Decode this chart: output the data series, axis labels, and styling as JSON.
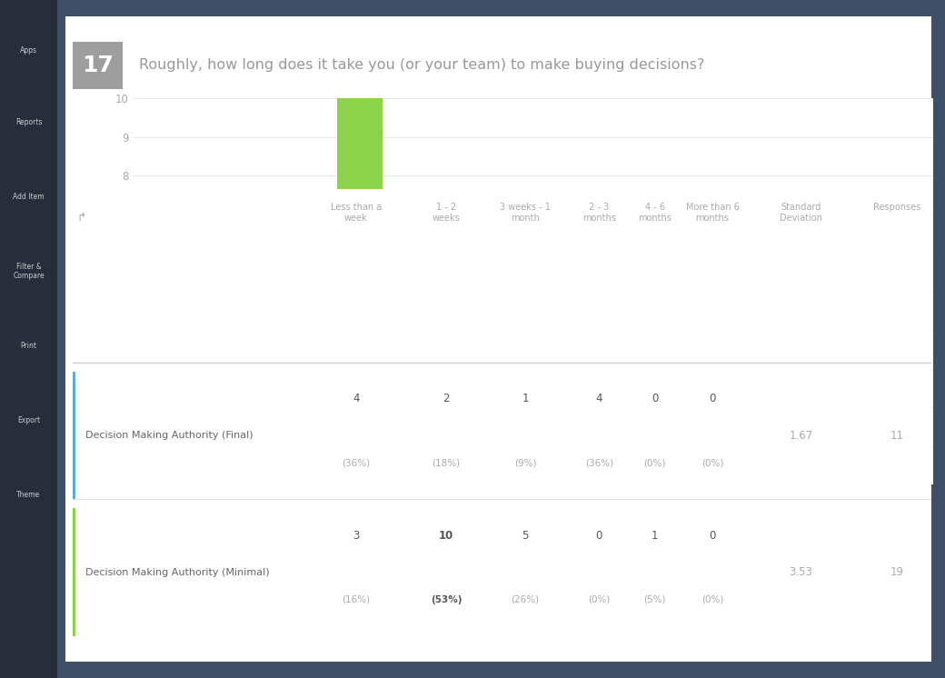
{
  "title": "Roughly, how long does it take you (or your team) to make buying decisions?",
  "question_number": "17",
  "categories": [
    "Less than a wee...",
    "1 - 2 weeks",
    "3 weeks - 1 mon...",
    "2 - 3 months",
    "4 - 6 months",
    "More than 6 mon..."
  ],
  "series1_label": "Decision Making Authority (Final)",
  "series1_values": [
    4,
    2,
    1,
    4,
    0,
    0
  ],
  "series1_color": "#6BBCCC",
  "series2_label": "Decision Making Authority (Minimal)",
  "series2_values": [
    3,
    10,
    5,
    0,
    1,
    0
  ],
  "series2_color": "#8BD44A",
  "ylim": [
    0,
    10
  ],
  "yticks": [
    0,
    1,
    2,
    3,
    4,
    5,
    6,
    7,
    8,
    9,
    10
  ],
  "table_headers": [
    "Less than a\nweek",
    "1 - 2\nweeks",
    "3 weeks - 1\nmonth",
    "2 - 3\nmonths",
    "4 - 6\nmonths",
    "More than 6\nmonths",
    "Standard\nDeviation",
    "Responses"
  ],
  "row1_label": "Decision Making Authority (Final)",
  "row1_border_color": "#5BAFD6",
  "row1_values": [
    "4\n(36%)",
    "2\n(18%)",
    "1\n(9%)",
    "4\n(36%)",
    "0\n(0%)",
    "0\n(0%)",
    "1.67",
    "11"
  ],
  "row1_bold_idx": [],
  "row2_label": "Decision Making Authority (Minimal)",
  "row2_border_color": "#8BD44A",
  "row2_values": [
    "3\n(16%)",
    "10\n(53%)",
    "5\n(26%)",
    "0\n(0%)",
    "1\n(5%)",
    "0\n(0%)",
    "3.53",
    "19"
  ],
  "row2_bold_idx": [
    1
  ],
  "sidebar_bg": "#252e3a",
  "panel_bg": "#ffffff",
  "outer_bg": "#3d5068",
  "grid_color": "#e8e8e8",
  "badge_bg": "#9e9e9e",
  "header_line_color": "#cccccc",
  "row_sep_color": "#e0e0e0"
}
